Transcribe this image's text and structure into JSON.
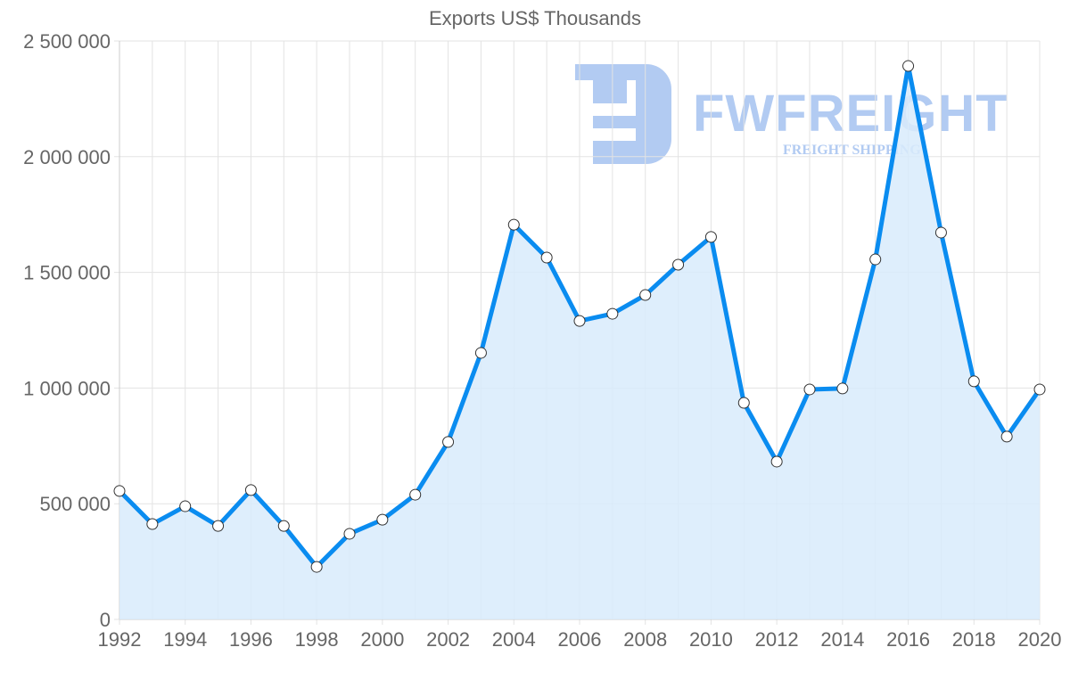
{
  "chart_data": {
    "type": "line",
    "title": "Exports US$ Thousands",
    "xlabel": "",
    "ylabel": "",
    "x": [
      1992,
      1993,
      1994,
      1995,
      1996,
      1997,
      1998,
      1999,
      2000,
      2001,
      2002,
      2003,
      2004,
      2005,
      2006,
      2007,
      2008,
      2009,
      2010,
      2011,
      2012,
      2013,
      2014,
      2015,
      2016,
      2017,
      2018,
      2019,
      2020
    ],
    "series": [
      {
        "name": "Exports US$ Thousands",
        "values": [
          555000,
          412000,
          489000,
          404000,
          559000,
          404000,
          227000,
          370000,
          431000,
          539000,
          767000,
          1152000,
          1706000,
          1564000,
          1290000,
          1321000,
          1402000,
          1533000,
          1653000,
          936000,
          682000,
          994000,
          998000,
          1556000,
          2392000,
          1672000,
          1029000,
          790000,
          994000
        ],
        "color": "#0a8cf0",
        "fill": "#d8ebfc"
      }
    ],
    "ylim": [
      0,
      2500000
    ],
    "yticks": [
      0,
      500000,
      1000000,
      1500000,
      2000000,
      2500000
    ],
    "ytick_labels": [
      "0",
      "500 000",
      "1 000 000",
      "1 500 000",
      "2 000 000",
      "2 500 000"
    ],
    "xtick_labels": [
      "1992",
      "1994",
      "1996",
      "1998",
      "2000",
      "2002",
      "2004",
      "2006",
      "2008",
      "2010",
      "2012",
      "2014",
      "2016",
      "2018",
      "2020"
    ],
    "grid": true,
    "legend": "none"
  },
  "watermark": {
    "brand": "FWFREIGHT",
    "tagline": "FREIGHT SHIPPING"
  }
}
